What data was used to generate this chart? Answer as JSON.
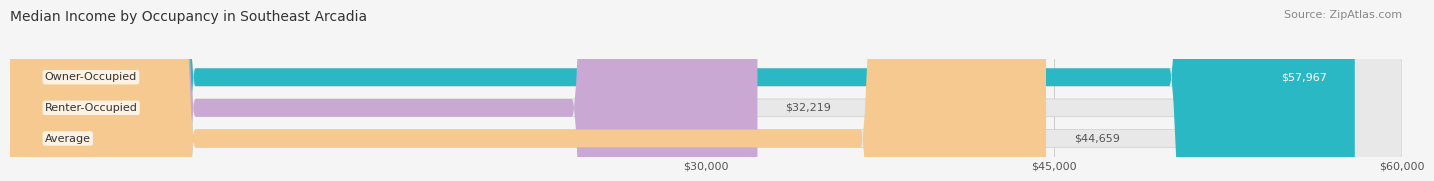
{
  "title": "Median Income by Occupancy in Southeast Arcadia",
  "source": "Source: ZipAtlas.com",
  "categories": [
    "Owner-Occupied",
    "Renter-Occupied",
    "Average"
  ],
  "values": [
    57967,
    32219,
    44659
  ],
  "bar_colors": [
    "#2ab8c5",
    "#c9a8d4",
    "#f5c990"
  ],
  "value_labels": [
    "$57,967",
    "$32,219",
    "$44,659"
  ],
  "xmin": 0,
  "xmax": 60000,
  "xticks": [
    30000,
    45000,
    60000
  ],
  "xtick_labels": [
    "$30,000",
    "$45,000",
    "$60,000"
  ],
  "bar_height": 0.58,
  "background_color": "#f5f5f5",
  "bar_bg_color": "#e8e8e8",
  "title_fontsize": 10,
  "source_fontsize": 8,
  "label_fontsize": 8,
  "tick_fontsize": 8
}
